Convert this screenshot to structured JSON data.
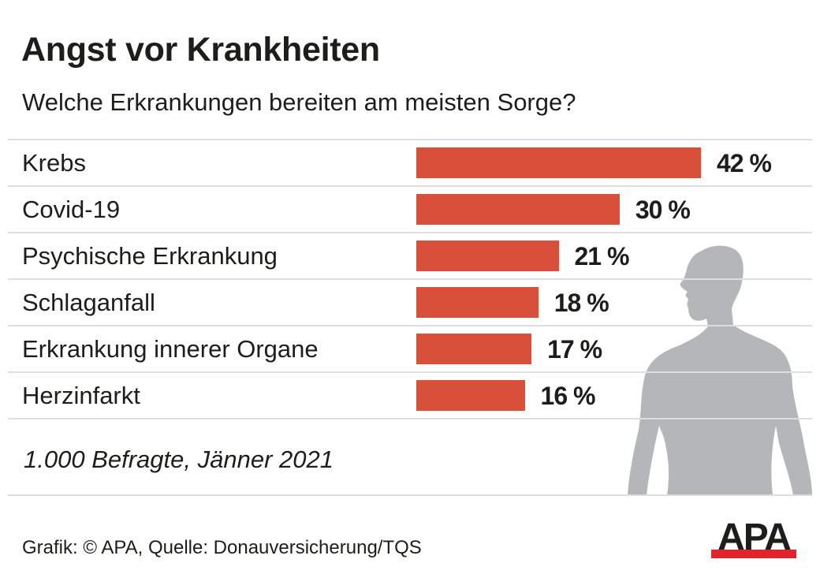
{
  "colors": {
    "bar": "#d9503a",
    "silhouette": "#b5b6b8",
    "rule": "#dedede",
    "logo_red": "#e3232b",
    "text": "#1d1d1b"
  },
  "chart_data": {
    "type": "bar",
    "orientation": "horizontal",
    "title": "Angst vor Krankheiten",
    "subtitle": "Welche Erkrankungen bereiten am meisten Sorge?",
    "categories": [
      "Krebs",
      "Covid-19",
      "Psychische Erkrankung",
      "Schlaganfall",
      "Erkrankung innerer Organe",
      "Herzinfarkt"
    ],
    "values": [
      42,
      30,
      21,
      18,
      17,
      16
    ],
    "value_labels": [
      "42 %",
      "30 %",
      "21 %",
      "18 %",
      "17 %",
      "16 %"
    ],
    "unit": "%",
    "xlim": [
      0,
      42
    ],
    "grid": false,
    "legend": "none",
    "note": "1.000 Befragte, Jänner 2021",
    "source": "Grafik: © APA, Quelle: Donauversicherung/TQS"
  },
  "decoration": {
    "silhouette_icon": "human-torso-silhouette",
    "logo_text": "APA"
  }
}
